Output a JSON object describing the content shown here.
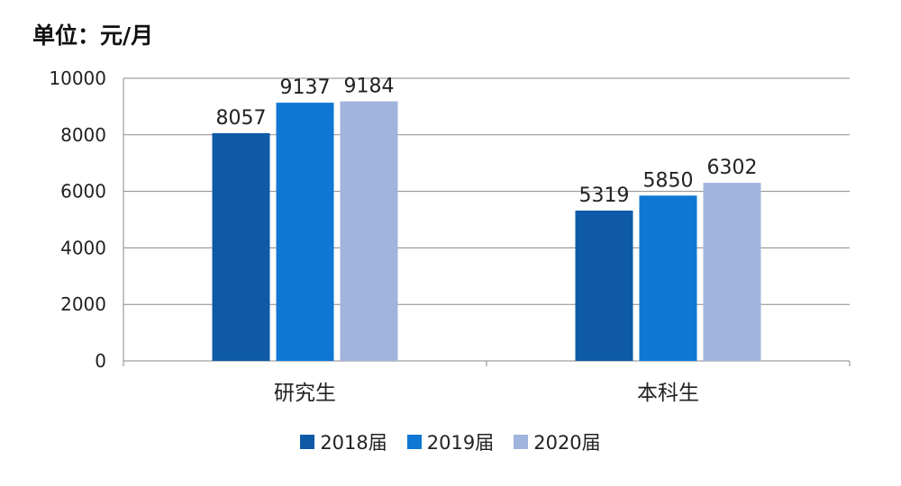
{
  "unit_label": "单位：元/月",
  "chart_data": {
    "type": "bar",
    "categories": [
      "研究生",
      "本科生"
    ],
    "series": [
      {
        "name": "2018届",
        "values": [
          8057,
          5319
        ],
        "color": "#0E5AA7"
      },
      {
        "name": "2019届",
        "values": [
          9137,
          5850
        ],
        "color": "#0E78D4"
      },
      {
        "name": "2020届",
        "values": [
          9184,
          6302
        ],
        "color": "#A1B4DD"
      }
    ],
    "ylim": [
      0,
      10000
    ],
    "yticks": [
      "0",
      "2000",
      "4000",
      "6000",
      "8000",
      "10000"
    ],
    "grid": true,
    "legend_position": "bottom"
  }
}
